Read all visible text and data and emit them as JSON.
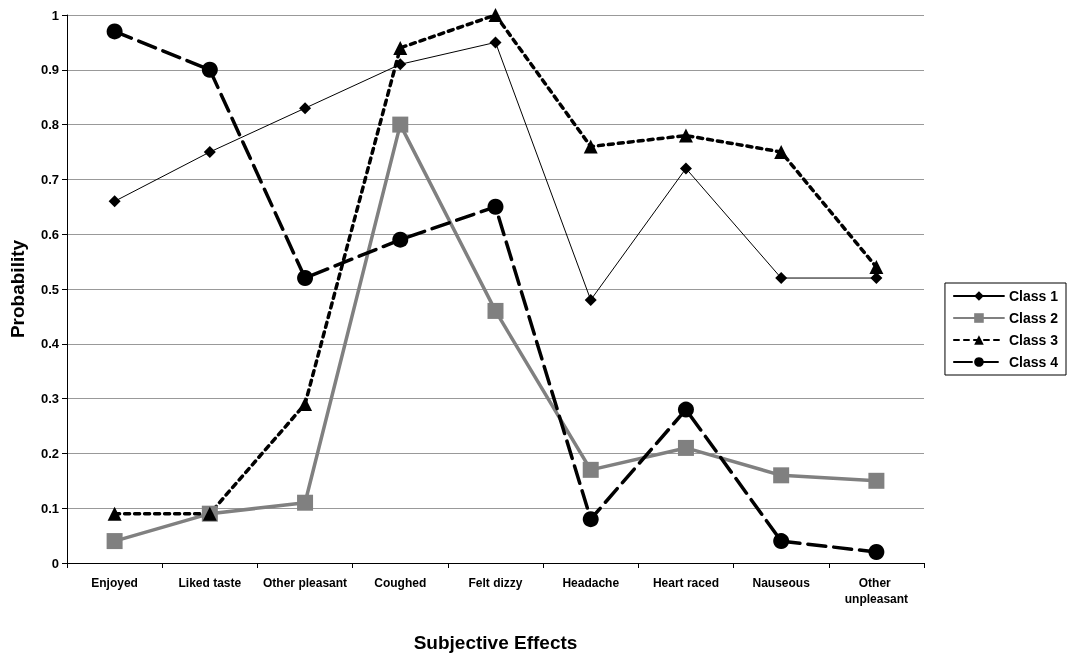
{
  "chart_data": {
    "type": "line",
    "xlabel": "Subjective Effects",
    "ylabel": "Probability",
    "categories": [
      "Enjoyed",
      "Liked taste",
      "Other pleasant",
      "Coughed",
      "Felt dizzy",
      "Headache",
      "Heart raced",
      "Nauseous",
      "Other unpleasant"
    ],
    "series": [
      {
        "name": "Class 1",
        "color": "#000000",
        "marker": "diamond",
        "line_style": "solid",
        "values": [
          0.66,
          0.75,
          0.83,
          0.91,
          0.95,
          0.48,
          0.72,
          0.52,
          0.52
        ]
      },
      {
        "name": "Class 2",
        "color": "#808080",
        "marker": "square",
        "line_style": "solid",
        "values": [
          0.04,
          0.09,
          0.11,
          0.8,
          0.46,
          0.17,
          0.21,
          0.16,
          0.15
        ]
      },
      {
        "name": "Class 3",
        "color": "#000000",
        "marker": "triangle",
        "line_style": "dotted",
        "values": [
          0.09,
          0.09,
          0.29,
          0.94,
          1.0,
          0.76,
          0.78,
          0.75,
          0.54
        ]
      },
      {
        "name": "Class 4",
        "color": "#000000",
        "marker": "circle",
        "line_style": "dashed",
        "values": [
          0.97,
          0.9,
          0.52,
          0.59,
          0.65,
          0.08,
          0.28,
          0.04,
          0.02
        ]
      }
    ],
    "ylim": [
      0,
      1
    ],
    "yticks": [
      0,
      0.1,
      0.2,
      0.3,
      0.4,
      0.5,
      0.6,
      0.7,
      0.8,
      0.9,
      1
    ],
    "grid": "y",
    "legend": "right"
  }
}
